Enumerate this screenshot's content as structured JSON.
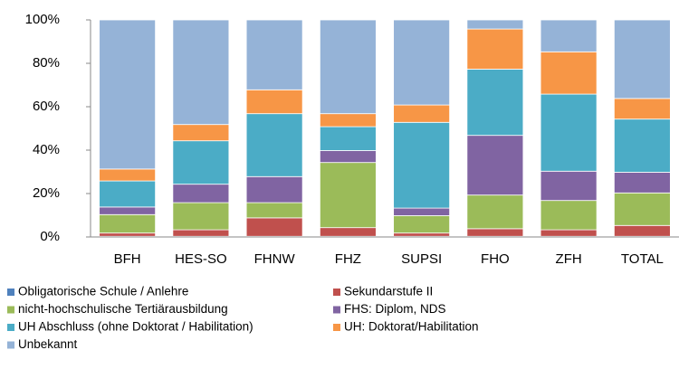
{
  "chart_data": {
    "type": "stacked_bar",
    "categories": [
      "BFH",
      "HES-SO",
      "FHNW",
      "FHZ",
      "SUPSI",
      "FHO",
      "ZFH",
      "TOTAL"
    ],
    "series": [
      {
        "name": "Obligatorische Schule / Anlehre",
        "color": "#4f81bd",
        "values": [
          0.3,
          0.3,
          0.3,
          0.3,
          0.3,
          0.3,
          0.3,
          0.3
        ]
      },
      {
        "name": "Sekundarstufe II",
        "color": "#c0504d",
        "values": [
          1.5,
          3,
          8.5,
          4,
          1.5,
          3.5,
          3,
          5
        ]
      },
      {
        "name": "nicht-hochschulische Tertiärausbildung",
        "color": "#9bbb59",
        "values": [
          8.5,
          12.5,
          7,
          30,
          8,
          15.5,
          13.5,
          15
        ]
      },
      {
        "name": "FHS: Diplom, NDS",
        "color": "#8064a2",
        "values": [
          3.5,
          8.5,
          12,
          5.5,
          3.5,
          27.5,
          13.5,
          9.5
        ]
      },
      {
        "name": "UH Abschluss (ohne Doktorat / Habilitation)",
        "color": "#4bacc6",
        "values": [
          12,
          20,
          29,
          11,
          39.5,
          30.5,
          35.5,
          24.5
        ]
      },
      {
        "name": "UH: Doktorat/Habilitation",
        "color": "#f79646",
        "values": [
          5.5,
          7.5,
          11,
          6,
          8,
          18.5,
          19.5,
          9.5
        ]
      },
      {
        "name": "Unbekannt",
        "color": "#95b3d7",
        "values": [
          68.7,
          48.2,
          32.2,
          43.2,
          39.2,
          4.2,
          14.7,
          36.2
        ]
      }
    ],
    "ylim": [
      0,
      100
    ],
    "yticks": [
      {
        "value": 0,
        "label": "0%"
      },
      {
        "value": 20,
        "label": "20%"
      },
      {
        "value": 40,
        "label": "40%"
      },
      {
        "value": 60,
        "label": "60%"
      },
      {
        "value": 80,
        "label": "80%"
      },
      {
        "value": 100,
        "label": "100%"
      }
    ],
    "grid": false,
    "legend": "bottom"
  }
}
